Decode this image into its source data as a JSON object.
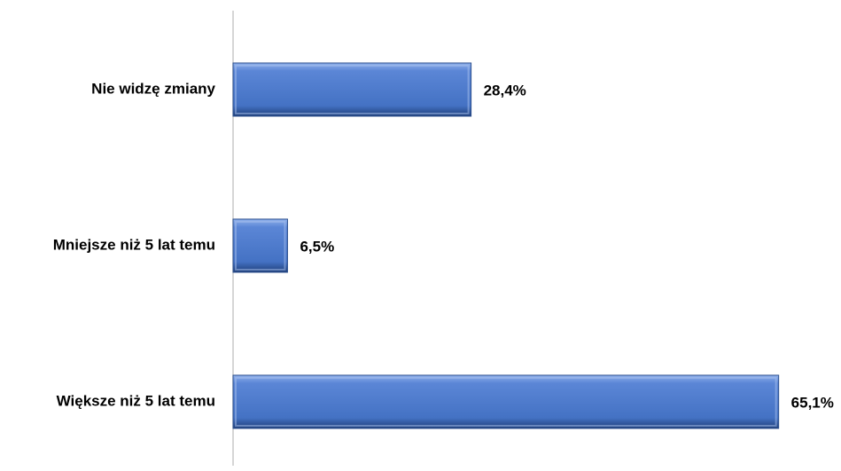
{
  "chart_data": {
    "type": "bar",
    "orientation": "horizontal",
    "categories": [
      "Nie widzę zmiany",
      "Mniejsze niż 5 lat temu",
      "Większe niż 5 lat temu"
    ],
    "values": [
      28.4,
      6.5,
      65.1
    ],
    "value_labels": [
      "28,4%",
      "6,5%",
      "65,1%"
    ],
    "color": "#4472c4",
    "xlim": [
      0,
      70
    ]
  }
}
